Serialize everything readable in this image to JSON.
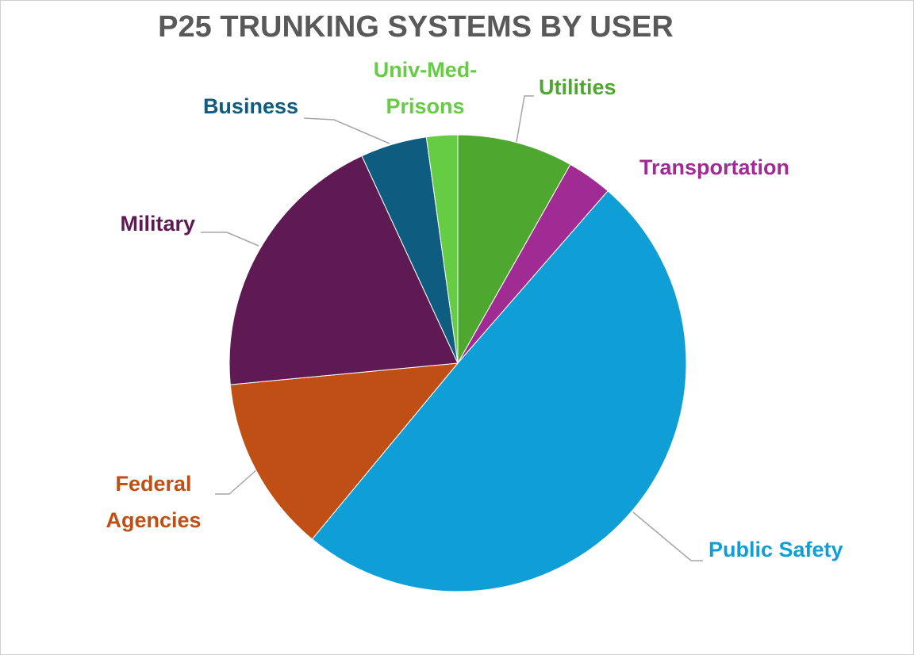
{
  "chart_data": {
    "type": "pie",
    "title": "P25 TRUNKING SYSTEMS BY USER",
    "categories": [
      "Utilities",
      "Transportation",
      "Public Safety",
      "Federal Agencies",
      "Military",
      "Business",
      "Univ-Med-Prisons"
    ],
    "values": [
      8.2,
      3.2,
      49.6,
      12.5,
      19.6,
      4.7,
      2.2
    ],
    "colors": [
      "#4ea72e",
      "#a02b93",
      "#0f9ed5",
      "#c04f15",
      "#5f1a54",
      "#0e5c80",
      "#66cc44"
    ]
  }
}
